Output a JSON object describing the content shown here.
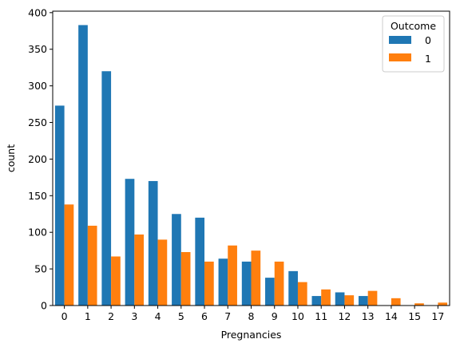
{
  "chart_data": {
    "type": "bar",
    "xlabel": "Pregnancies",
    "ylabel": "count",
    "title": "",
    "categories": [
      "0",
      "1",
      "2",
      "3",
      "4",
      "5",
      "6",
      "7",
      "8",
      "9",
      "10",
      "11",
      "12",
      "13",
      "14",
      "15",
      "17"
    ],
    "series": [
      {
        "name": "0",
        "color": "#1f77b4",
        "values": [
          273,
          383,
          320,
          173,
          170,
          125,
          120,
          64,
          60,
          38,
          47,
          13,
          18,
          13,
          0,
          0,
          0
        ]
      },
      {
        "name": "1",
        "color": "#ff7f0e",
        "values": [
          138,
          109,
          67,
          97,
          90,
          73,
          60,
          82,
          75,
          60,
          32,
          22,
          14,
          20,
          10,
          3,
          4
        ]
      }
    ],
    "ylim": [
      0,
      402
    ],
    "yticks": [
      0,
      50,
      100,
      150,
      200,
      250,
      300,
      350,
      400
    ],
    "legend": {
      "title": "Outcome",
      "placement": "top-right"
    },
    "grid": false
  }
}
